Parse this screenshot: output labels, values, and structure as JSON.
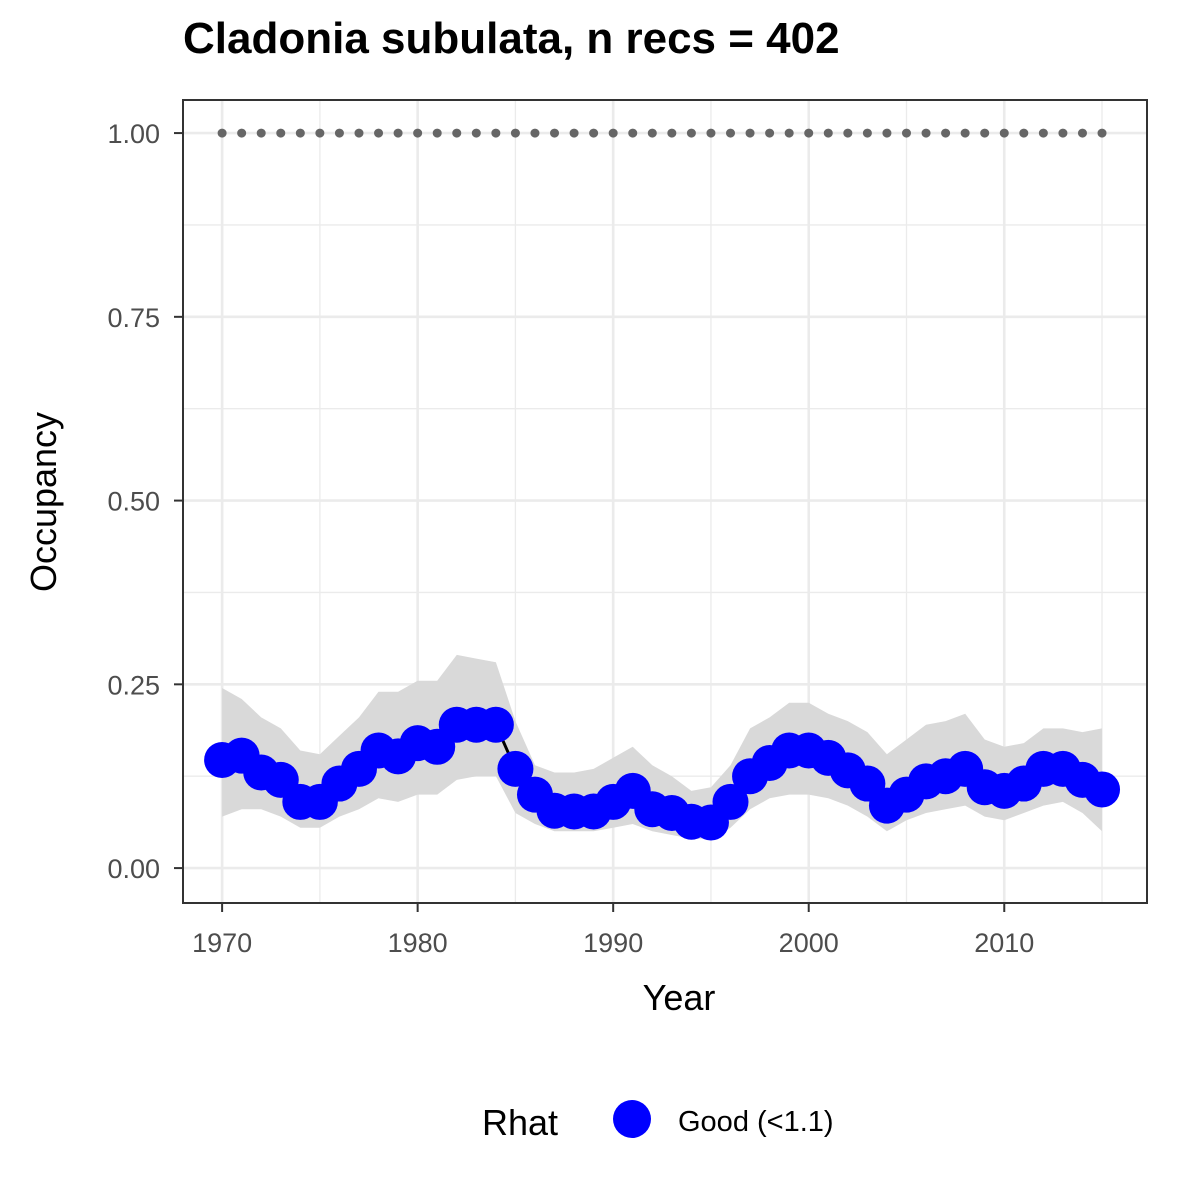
{
  "chart_data": {
    "type": "line",
    "title": "Cladonia subulata, n recs = 402",
    "xlabel": "Year",
    "ylabel": "Occupancy",
    "xlim": [
      1968.0,
      2017.3
    ],
    "ylim": [
      -0.0475,
      1.045
    ],
    "x_ticks": [
      1970,
      1980,
      1990,
      2000,
      2010
    ],
    "x_tick_labels": [
      "1970",
      "1980",
      "1990",
      "2000",
      "2010"
    ],
    "y_ticks": [
      0,
      0.25,
      0.5,
      0.75,
      1.0
    ],
    "y_tick_labels": [
      "0.00",
      "0.25",
      "0.50",
      "0.75",
      "1.00"
    ],
    "grid": true,
    "legend": {
      "position": "bottom",
      "title": "Rhat",
      "entries": [
        {
          "label": "Good (<1.1)",
          "color": "#0000ff"
        }
      ]
    },
    "colors": {
      "points": "#0000ff",
      "line": "#000000",
      "ribbon": "#d9d9d9",
      "reference_dots": "#666666"
    },
    "reference_line": {
      "y": 1.0,
      "style": "dotted"
    },
    "x": [
      1970,
      1971,
      1972,
      1973,
      1974,
      1975,
      1976,
      1977,
      1978,
      1979,
      1980,
      1981,
      1982,
      1983,
      1984,
      1985,
      1986,
      1987,
      1988,
      1989,
      1990,
      1991,
      1992,
      1993,
      1994,
      1995,
      1996,
      1997,
      1998,
      1999,
      2000,
      2001,
      2002,
      2003,
      2004,
      2005,
      2006,
      2007,
      2008,
      2009,
      2010,
      2011,
      2012,
      2013,
      2014,
      2015
    ],
    "series": [
      {
        "name": "Good (<1.1)",
        "values": [
          0.147,
          0.153,
          0.13,
          0.12,
          0.09,
          0.09,
          0.115,
          0.135,
          0.16,
          0.152,
          0.17,
          0.165,
          0.195,
          0.195,
          0.195,
          0.135,
          0.1,
          0.078,
          0.077,
          0.077,
          0.09,
          0.105,
          0.08,
          0.075,
          0.063,
          0.062,
          0.09,
          0.125,
          0.143,
          0.16,
          0.16,
          0.15,
          0.133,
          0.115,
          0.085,
          0.1,
          0.118,
          0.125,
          0.135,
          0.11,
          0.105,
          0.115,
          0.135,
          0.135,
          0.12,
          0.107
        ]
      }
    ],
    "ci_lower": [
      0.07,
      0.08,
      0.08,
      0.07,
      0.055,
      0.055,
      0.07,
      0.08,
      0.095,
      0.09,
      0.1,
      0.1,
      0.12,
      0.125,
      0.125,
      0.075,
      0.06,
      0.05,
      0.05,
      0.05,
      0.055,
      0.06,
      0.05,
      0.045,
      0.04,
      0.04,
      0.055,
      0.08,
      0.095,
      0.1,
      0.1,
      0.095,
      0.085,
      0.07,
      0.05,
      0.065,
      0.075,
      0.08,
      0.085,
      0.07,
      0.065,
      0.075,
      0.085,
      0.09,
      0.075,
      0.05
    ],
    "ci_upper": [
      0.245,
      0.23,
      0.205,
      0.19,
      0.16,
      0.155,
      0.18,
      0.205,
      0.24,
      0.24,
      0.255,
      0.255,
      0.29,
      0.285,
      0.28,
      0.2,
      0.14,
      0.13,
      0.13,
      0.135,
      0.15,
      0.165,
      0.14,
      0.125,
      0.105,
      0.11,
      0.14,
      0.19,
      0.205,
      0.225,
      0.225,
      0.21,
      0.2,
      0.185,
      0.155,
      0.175,
      0.195,
      0.2,
      0.21,
      0.175,
      0.165,
      0.17,
      0.19,
      0.19,
      0.185,
      0.19
    ]
  }
}
